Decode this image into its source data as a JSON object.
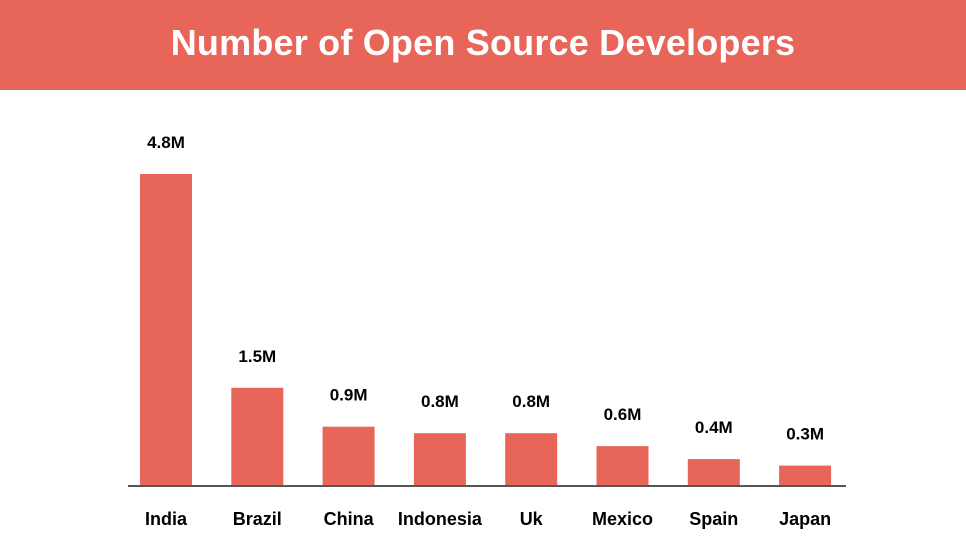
{
  "colors": {
    "accent": "#E8655A",
    "axis": "#555555"
  },
  "chart_data": {
    "type": "bar",
    "title": "Number of Open Source Developers",
    "categories": [
      "India",
      "Brazil",
      "China",
      "Indonesia",
      "Uk",
      "Mexico",
      "Spain",
      "Japan"
    ],
    "values": [
      4.8,
      1.5,
      0.9,
      0.8,
      0.8,
      0.6,
      0.4,
      0.3
    ],
    "value_labels": [
      "4.8M",
      "1.5M",
      "0.9M",
      "0.8M",
      "0.8M",
      "0.6M",
      "0.4M",
      "0.3M"
    ],
    "unit": "M",
    "xlabel": "",
    "ylabel": "",
    "ylim": [
      0,
      5
    ],
    "grid": false,
    "legend": "none"
  }
}
